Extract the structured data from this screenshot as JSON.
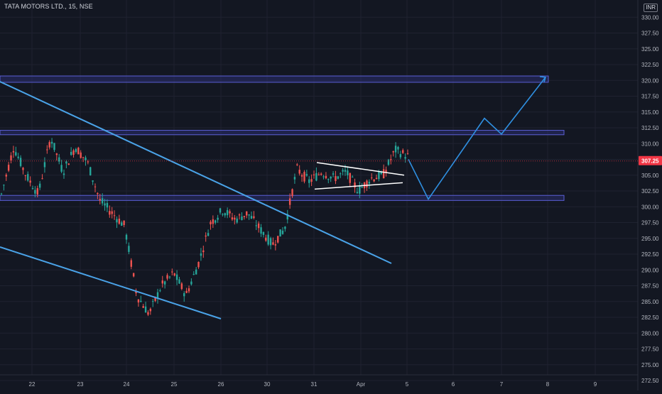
{
  "header": {
    "symbol": "TATA MOTORS LTD., 15, NSE",
    "currency": "INR"
  },
  "colors": {
    "background": "#131722",
    "grid": "#1f2230",
    "axis_text": "#b2b5be",
    "up": "#26a69a",
    "down": "#ef5350",
    "trendline": "#4aa3e8",
    "projection": "#2f8fe0",
    "zone_fill": "#2a2d6e",
    "zone_stroke": "#5b5fd6",
    "triangle": "#ffffff",
    "price_tag": "#f23645"
  },
  "chart_data": {
    "type": "candlestick",
    "title": "TATA MOTORS LTD., 15, NSE",
    "ylim": [
      272.5,
      332.5
    ],
    "y_ticks": [
      "330.00",
      "327.50",
      "325.00",
      "322.50",
      "320.00",
      "317.50",
      "315.00",
      "312.50",
      "310.00",
      "307.50",
      "305.00",
      "302.50",
      "300.00",
      "297.50",
      "295.00",
      "292.50",
      "290.00",
      "287.50",
      "285.00",
      "282.50",
      "280.00",
      "277.50",
      "275.00",
      "272.50"
    ],
    "x_labels": [
      "22",
      "23",
      "24",
      "25",
      "26",
      "30",
      "31",
      "Apr",
      "5",
      "6",
      "7",
      "8",
      "9"
    ],
    "current_price": "307.25",
    "price_series": [
      [
        "22",
        302.0
      ],
      [
        "22",
        309.5
      ],
      [
        "22",
        305.0
      ],
      [
        "22",
        302.0
      ],
      [
        "23",
        311.0
      ],
      [
        "23",
        305.5
      ],
      [
        "23",
        309.5
      ],
      [
        "24",
        307.0
      ],
      [
        "24",
        301.0
      ],
      [
        "24",
        299.0
      ],
      [
        "25",
        297.0
      ],
      [
        "25",
        286.0
      ],
      [
        "25",
        283.0
      ],
      [
        "25",
        287.5
      ],
      [
        "25",
        289.5
      ],
      [
        "25",
        286.0
      ],
      [
        "26",
        291.0
      ],
      [
        "26",
        297.5
      ],
      [
        "26",
        299.5
      ],
      [
        "26",
        298.0
      ],
      [
        "30",
        299.0
      ],
      [
        "30",
        296.5
      ],
      [
        "30",
        294.0
      ],
      [
        "30",
        296.5
      ],
      [
        "31",
        306.0
      ],
      [
        "31",
        304.0
      ],
      [
        "31",
        305.5
      ],
      [
        "31",
        304.5
      ],
      [
        "31",
        305.5
      ],
      [
        "Apr",
        302.5
      ],
      [
        "Apr",
        304.5
      ],
      [
        "Apr",
        305.0
      ],
      [
        "5",
        309.0
      ],
      [
        "5",
        308.0
      ]
    ],
    "zones": [
      {
        "from": 319.7,
        "to": 320.7
      },
      {
        "from": 311.4,
        "to": 312.1
      },
      {
        "from": 301.0,
        "to": 301.8
      }
    ],
    "trendlines": [
      {
        "from": [
          "22",
          320.0
        ],
        "to": [
          "31",
          290.5
        ]
      },
      {
        "from": [
          "22",
          293.5
        ],
        "to": [
          "26",
          281.5
        ]
      }
    ],
    "triangle": {
      "upper": {
        "from": [
          "31",
          307.0
        ],
        "to": [
          "5",
          305.0
        ]
      },
      "lower": {
        "from": [
          "31",
          302.8
        ],
        "to": [
          "5",
          303.8
        ]
      }
    },
    "projection": [
      [
        "5",
        307.5
      ],
      [
        "5",
        301.2
      ],
      [
        "6",
        314.0
      ],
      [
        "7",
        311.5
      ],
      [
        "8",
        320.5
      ]
    ]
  }
}
